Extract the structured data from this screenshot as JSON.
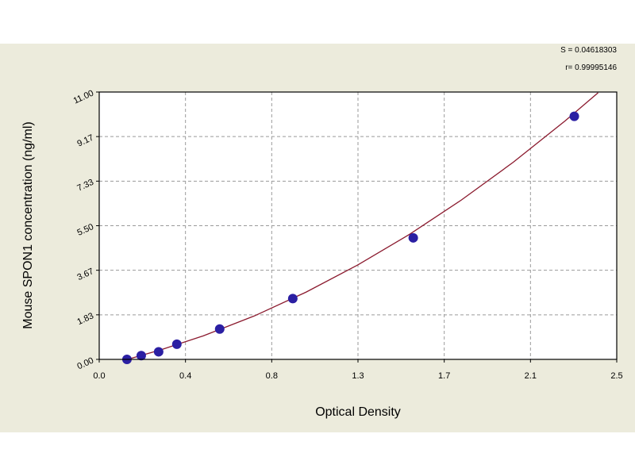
{
  "chart_data": {
    "type": "scatter",
    "x_label": "Optical Density",
    "y_label": "Mouse SPON1 concentration (ng/ml)",
    "annotations": [
      "S = 0.04618303",
      "r= 0.99995146"
    ],
    "xlim": [
      0,
      2.5
    ],
    "ylim": [
      0,
      11
    ],
    "xticks": [
      {
        "value": 0,
        "label": "0.0"
      },
      {
        "value": 0.4167,
        "label": "0.4"
      },
      {
        "value": 0.8333,
        "label": "0.8"
      },
      {
        "value": 1.25,
        "label": "1.3"
      },
      {
        "value": 1.6667,
        "label": "1.7"
      },
      {
        "value": 2.0833,
        "label": "2.1"
      },
      {
        "value": 2.5,
        "label": "2.5"
      }
    ],
    "yticks": [
      {
        "value": 0,
        "label": "0.00"
      },
      {
        "value": 1.8333,
        "label": "1.83"
      },
      {
        "value": 3.6667,
        "label": "3.67"
      },
      {
        "value": 5.5,
        "label": "5.50"
      },
      {
        "value": 7.3333,
        "label": "7.33"
      },
      {
        "value": 9.1667,
        "label": "9.17"
      },
      {
        "value": 11,
        "label": "11.00"
      }
    ],
    "grid": true,
    "points": {
      "color": "#2b1fa3",
      "x": [
        0.134,
        0.203,
        0.287,
        0.375,
        0.582,
        0.935,
        1.517,
        2.295
      ],
      "y": [
        0,
        0.156,
        0.312,
        0.625,
        1.25,
        2.5,
        5,
        10
      ]
    },
    "curve": {
      "color": "#8b1a2e",
      "x": [
        0.14,
        0.3,
        0.5,
        0.75,
        1.0,
        1.25,
        1.5,
        1.75,
        2.0,
        2.25,
        2.41
      ],
      "y": [
        0.01,
        0.4,
        0.96,
        1.79,
        2.77,
        3.89,
        5.15,
        6.56,
        8.11,
        9.81,
        10.97
      ]
    }
  }
}
